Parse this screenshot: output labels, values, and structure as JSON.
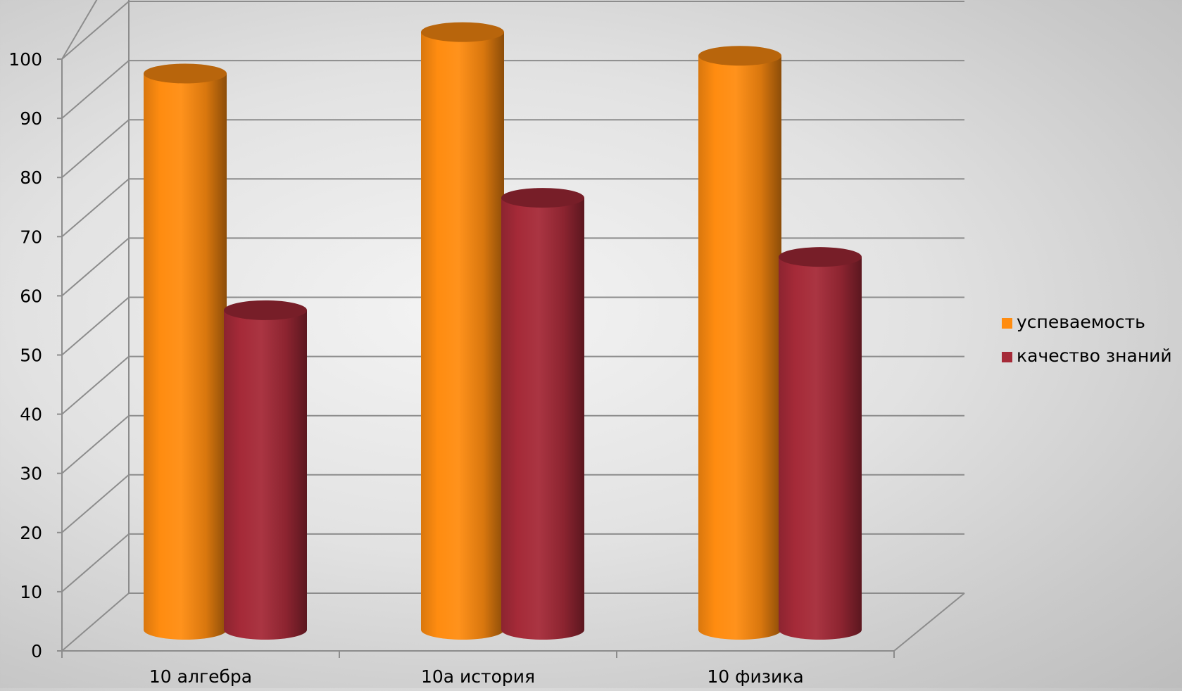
{
  "chart_data": {
    "type": "bar",
    "style": "3d-cylinder",
    "categories": [
      "10 алгебра",
      "10а история",
      "10 физика"
    ],
    "series": [
      {
        "name": "успеваемость",
        "values": [
          94,
          101,
          97
        ],
        "color": "#FF8C10"
      },
      {
        "name": "качество знаний",
        "values": [
          54,
          73,
          63
        ],
        "color": "#A52A38"
      }
    ],
    "ylim": [
      0,
      100
    ],
    "yticks": [
      0,
      10,
      20,
      30,
      40,
      50,
      60,
      70,
      80,
      90,
      100
    ],
    "grid": true,
    "legend_position": "right",
    "title": "",
    "xlabel": "",
    "ylabel": ""
  }
}
